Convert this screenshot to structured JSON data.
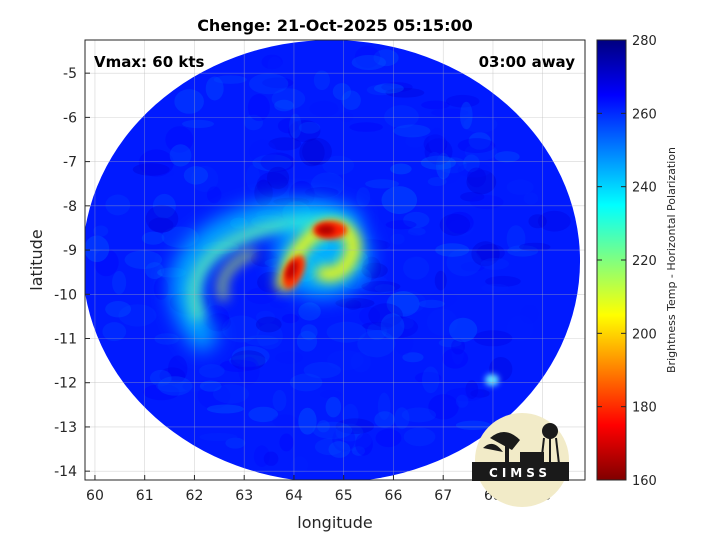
{
  "chart_data": {
    "type": "heatmap",
    "title": "Chenge: 21-Oct-2025 05:15:00",
    "xlabel": "longitude",
    "ylabel": "latitude",
    "xlim": [
      59.8,
      69.85
    ],
    "ylim": [
      -14.2,
      -4.25
    ],
    "xticks": [
      "60",
      "61",
      "62",
      "63",
      "64",
      "65",
      "66",
      "67",
      "68",
      "69"
    ],
    "yticks": [
      "-5",
      "-6",
      "-7",
      "-8",
      "-9",
      "-10",
      "-11",
      "-12",
      "-13",
      "-14"
    ],
    "grid": true,
    "annotations": {
      "vmax": "Vmax: 60 kts",
      "time_away": "03:00 away"
    },
    "colorbar": {
      "label": "Brightness Temp - Horizontal Polarization",
      "range": [
        160,
        280
      ],
      "ticks": [
        "280",
        "260",
        "240",
        "220",
        "200",
        "180",
        "160"
      ],
      "colormap": "jet",
      "colors": [
        "#800000",
        "#ff0000",
        "#ff8000",
        "#ffff00",
        "#80ff80",
        "#00ffff",
        "#0080ff",
        "#0000ff",
        "#000080"
      ]
    },
    "swath": {
      "center": [
        64.75,
        -9.25
      ],
      "radius_deg": 5.0,
      "background_value": 262
    },
    "features": [
      {
        "name": "eyewall-north",
        "lon": 64.7,
        "lat": -8.5,
        "value": 172
      },
      {
        "name": "eyewall-west",
        "lon": 63.9,
        "lat": -9.7,
        "value": 175
      },
      {
        "name": "inner-band",
        "lon": 64.9,
        "lat": -9.0,
        "value": 205
      },
      {
        "name": "outer-band-arc",
        "lon": 62.5,
        "lat": -9.4,
        "value": 228
      },
      {
        "name": "band-tail",
        "lon": 61.6,
        "lat": -10.4,
        "value": 232
      },
      {
        "name": "cell-east",
        "lon": 68.1,
        "lat": -11.9,
        "value": 238
      }
    ]
  },
  "logo": {
    "text": "CIMSS"
  }
}
